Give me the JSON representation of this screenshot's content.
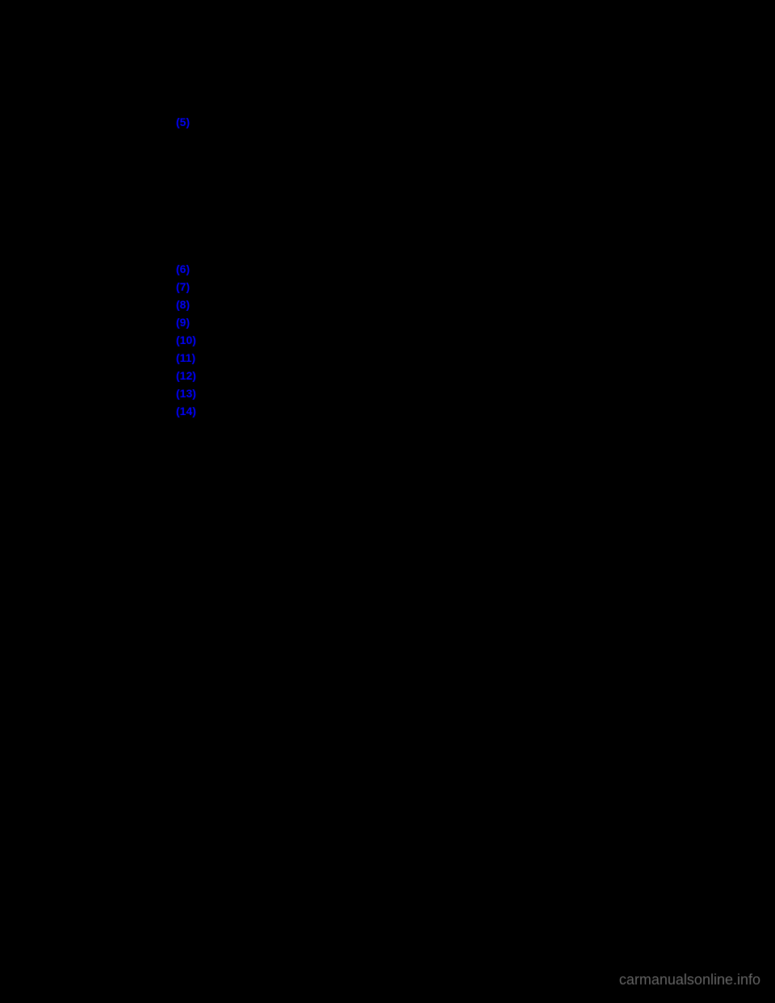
{
  "links": {
    "group1": [
      {
        "label": "(5)"
      }
    ],
    "group2": [
      {
        "label": "(6)"
      },
      {
        "label": "(7)"
      },
      {
        "label": "(8)"
      },
      {
        "label": "(9)"
      },
      {
        "label": "(10)"
      },
      {
        "label": "(11)"
      },
      {
        "label": "(12)"
      },
      {
        "label": "(13)"
      },
      {
        "label": "(14)"
      }
    ]
  },
  "watermark": "carmanualsonline.info",
  "colors": {
    "background": "#000000",
    "link": "#0000FF",
    "watermark": "#666666"
  }
}
